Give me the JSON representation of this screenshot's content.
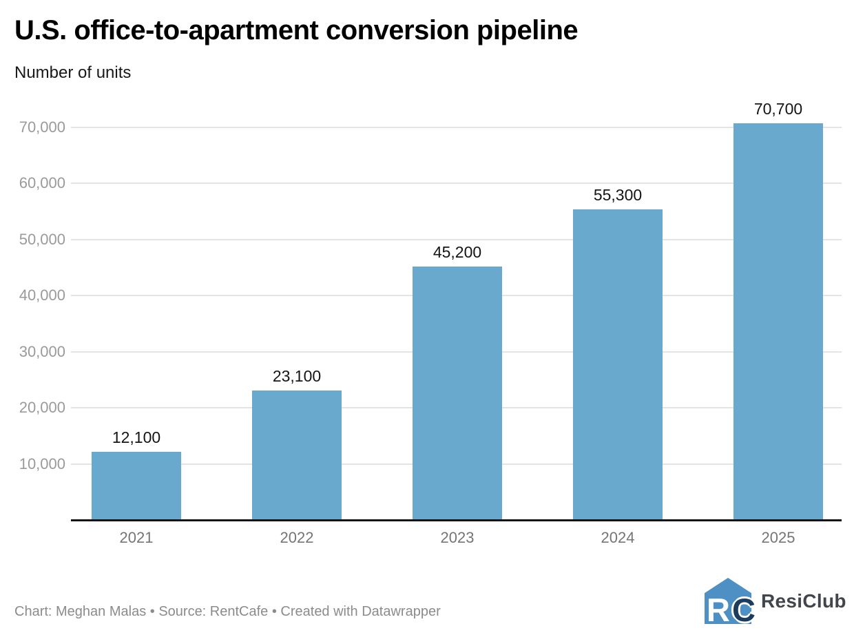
{
  "header": {
    "title": "U.S. office-to-apartment conversion pipeline",
    "subtitle": "Number of units"
  },
  "chart_data": {
    "type": "bar",
    "title": "U.S. office-to-apartment conversion pipeline",
    "subtitle_units": "Number of units",
    "categories": [
      "2021",
      "2022",
      "2023",
      "2024",
      "2025"
    ],
    "values": [
      12100,
      23100,
      45200,
      55300,
      70700
    ],
    "value_labels": [
      "12,100",
      "23,100",
      "45,200",
      "55,300",
      "70,700"
    ],
    "xlabel": "",
    "ylabel": "Number of units",
    "ylim": [
      0,
      75000
    ],
    "yticks": [
      10000,
      20000,
      30000,
      40000,
      50000,
      60000,
      70000
    ],
    "ytick_labels": [
      "10,000",
      "20,000",
      "30,000",
      "40,000",
      "50,000",
      "60,000",
      "70,000"
    ],
    "grid": true,
    "legend": false
  },
  "footer": {
    "credit": "Chart: Meghan Malas • Source: RentCafe • Created with Datawrapper",
    "logo": {
      "monogram_r": "R",
      "monogram_c": "C",
      "wordmark": "ResiClub"
    }
  },
  "colors": {
    "bar": "#69a9ce",
    "axis_line": "#131313",
    "gridline": "#e4e4e4",
    "ytick_label": "#9a9a9a",
    "xtick_label": "#757575",
    "value_label": "#141414",
    "footer_text": "#8b8b8b",
    "logo_blue": "#4e8fc4",
    "logo_navy": "#1d3a5f",
    "logo_text": "#41464c"
  }
}
